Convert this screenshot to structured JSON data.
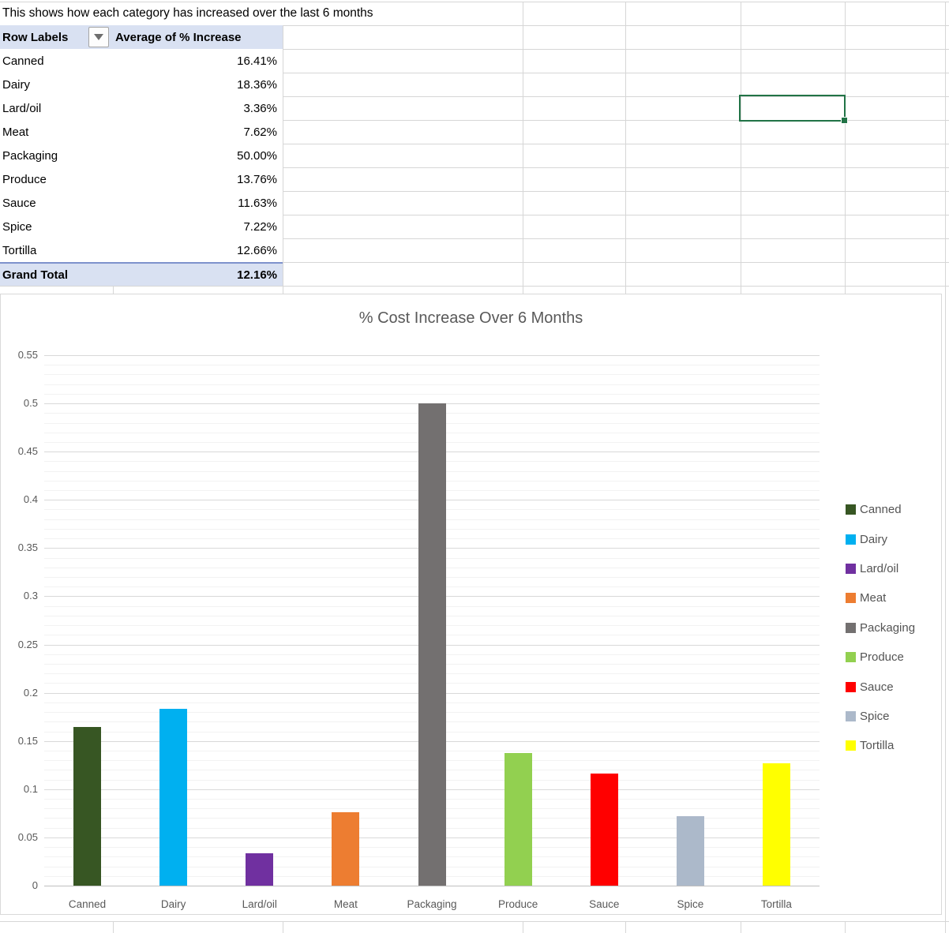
{
  "sheet": {
    "note": "This shows how each category has increased over the last 6 months",
    "pivot": {
      "header": {
        "row_labels": "Row Labels",
        "value_label": "Average of % Increase"
      },
      "rows": [
        {
          "label": "Canned",
          "value": "16.41%"
        },
        {
          "label": "Dairy",
          "value": "18.36%"
        },
        {
          "label": "Lard/oil",
          "value": "3.36%"
        },
        {
          "label": "Meat",
          "value": "7.62%"
        },
        {
          "label": "Packaging",
          "value": "50.00%"
        },
        {
          "label": "Produce",
          "value": "13.76%"
        },
        {
          "label": "Sauce",
          "value": "11.63%"
        },
        {
          "label": "Spice",
          "value": "7.22%"
        },
        {
          "label": "Tortilla",
          "value": "12.66%"
        }
      ],
      "total": {
        "label": "Grand Total",
        "value": "12.16%"
      }
    },
    "colors": {
      "pivot_fill": "#d9e1f2",
      "pivot_total_border": "#7e92cc",
      "gridline": "#d6d6d6",
      "selection_green": "#217346"
    }
  },
  "chart_data": {
    "type": "bar",
    "title": "% Cost Increase Over 6 Months",
    "categories": [
      "Canned",
      "Dairy",
      "Lard/oil",
      "Meat",
      "Packaging",
      "Produce",
      "Sauce",
      "Spice",
      "Tortilla"
    ],
    "values": [
      0.1641,
      0.1836,
      0.0336,
      0.0762,
      0.5,
      0.1376,
      0.1163,
      0.0722,
      0.1266
    ],
    "colors": [
      "#375623",
      "#00b0f0",
      "#7030a0",
      "#ed7d31",
      "#737070",
      "#92d050",
      "#ff0000",
      "#acb9ca",
      "#ffff00"
    ],
    "xlabel": "",
    "ylabel": "",
    "ylim": [
      0,
      0.55
    ],
    "y_major_step": 0.05,
    "y_minor_step": 0.01,
    "y_tick_labels": [
      "0",
      "0.05",
      "0.1",
      "0.15",
      "0.2",
      "0.25",
      "0.3",
      "0.35",
      "0.4",
      "0.45",
      "0.5",
      "0.55"
    ],
    "grid": "on",
    "legend_position": "right",
    "legend": [
      {
        "label": "Canned",
        "color": "#375623"
      },
      {
        "label": "Dairy",
        "color": "#00b0f0"
      },
      {
        "label": "Lard/oil",
        "color": "#7030a0"
      },
      {
        "label": "Meat",
        "color": "#ed7d31"
      },
      {
        "label": "Packaging",
        "color": "#737070"
      },
      {
        "label": "Produce",
        "color": "#92d050"
      },
      {
        "label": "Sauce",
        "color": "#ff0000"
      },
      {
        "label": "Spice",
        "color": "#acb9ca"
      },
      {
        "label": "Tortilla",
        "color": "#ffff00"
      }
    ]
  }
}
